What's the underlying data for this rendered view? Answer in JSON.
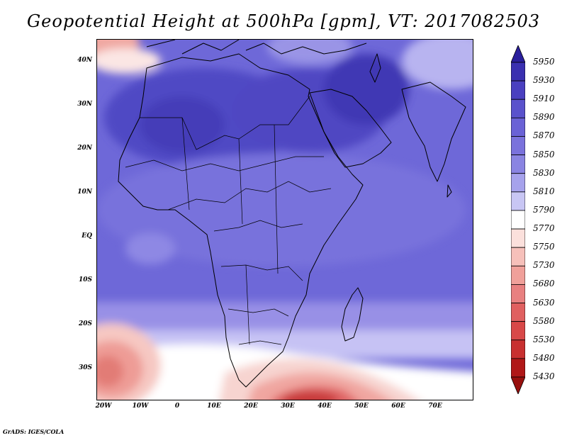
{
  "title": "Geopotential Height at 500hPa [gpm], VT: 2017082503",
  "credit": "GrADS: IGES/COLA",
  "lat_ticks": [
    "40N",
    "30N",
    "20N",
    "10N",
    "EQ",
    "10S",
    "20S",
    "30S"
  ],
  "lon_ticks": [
    "20W",
    "10W",
    "0",
    "10E",
    "20E",
    "30E",
    "40E",
    "50E",
    "60E",
    "70E"
  ],
  "colorbar": {
    "labels": [
      "5950",
      "5930",
      "5910",
      "5890",
      "5870",
      "5850",
      "5830",
      "5810",
      "5790",
      "5770",
      "5750",
      "5730",
      "5680",
      "5630",
      "5580",
      "5530",
      "5480",
      "5430"
    ],
    "colors": [
      "#2a1f9c",
      "#3a30b0",
      "#4a40c0",
      "#5a52cc",
      "#6a62d6",
      "#7a72dc",
      "#8a84e2",
      "#a6a2ec",
      "#c8c6f4",
      "#ffffff",
      "#fbe0dc",
      "#f6c0ba",
      "#f0a09a",
      "#e88080",
      "#e06060",
      "#d84848",
      "#c83030",
      "#b01818",
      "#98100e"
    ]
  }
}
